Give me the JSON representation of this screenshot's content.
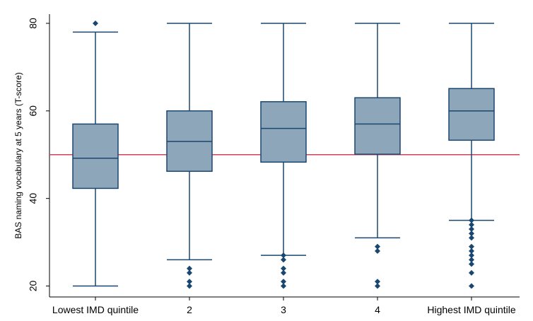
{
  "chart_data": {
    "type": "boxplot",
    "title": "",
    "xlabel": "",
    "ylabel": "BAS naming vocabulary at 5 years (T-score)",
    "ylim": [
      18,
      83
    ],
    "yticks": [
      20,
      40,
      60,
      80
    ],
    "grid": false,
    "legend": "none",
    "reference_line": {
      "y": 50,
      "color": "#d0405a"
    },
    "categories": [
      "Lowest IMD quintile",
      "2",
      "3",
      "4",
      "Highest IMD quintile"
    ],
    "boxes": [
      {
        "category": "Lowest IMD quintile",
        "whisker_low": 20,
        "q1": 42.3,
        "median": 49.2,
        "q3": 57,
        "whisker_high": 78,
        "outliers": [
          80
        ]
      },
      {
        "category": "2",
        "whisker_low": 26,
        "q1": 46.2,
        "median": 53,
        "q3": 60,
        "whisker_high": 80,
        "outliers": [
          20,
          21,
          23,
          24
        ]
      },
      {
        "category": "3",
        "whisker_low": 27,
        "q1": 48.3,
        "median": 56,
        "q3": 62.1,
        "whisker_high": 80,
        "outliers": [
          20,
          21,
          23,
          24,
          26,
          27
        ]
      },
      {
        "category": "4",
        "whisker_low": 31,
        "q1": 50.1,
        "median": 57,
        "q3": 63,
        "whisker_high": 80,
        "outliers": [
          20,
          21,
          28,
          29
        ]
      },
      {
        "category": "Highest IMD quintile",
        "whisker_low": 35,
        "q1": 53.3,
        "median": 60,
        "q3": 65.1,
        "whisker_high": 80,
        "outliers": [
          20,
          23,
          25,
          26,
          27,
          28,
          29,
          31,
          32,
          33,
          34,
          35
        ]
      }
    ],
    "colors": {
      "box_fill": "#8ea6b9",
      "box_stroke": "#1a476f",
      "marker": "#1a476f",
      "axis": "#000000"
    }
  }
}
